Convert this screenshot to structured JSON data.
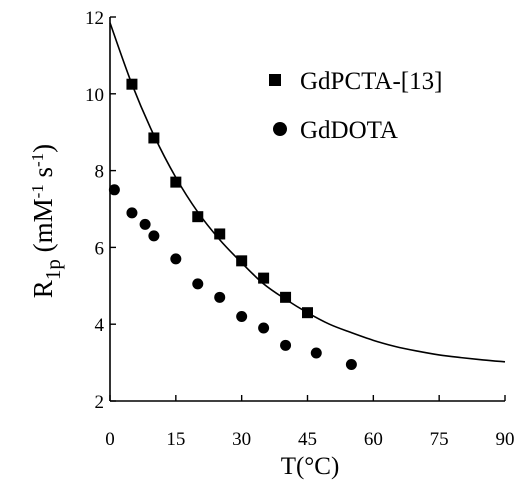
{
  "chart_data": {
    "type": "scatter",
    "xlabel": "T(°C)",
    "ylabel": {
      "main": "R",
      "subscript": "1p",
      "units_open": " (mM",
      "units_exp1": "-1",
      "units_mid": " s",
      "units_exp2": "-1",
      "units_close": ")"
    },
    "xlim": [
      0,
      90
    ],
    "ylim": [
      2,
      12
    ],
    "xticks": [
      "0",
      "15",
      "30",
      "45",
      "60",
      "75",
      "90"
    ],
    "yticks": [
      "2",
      "4",
      "6",
      "8",
      "10",
      "12"
    ],
    "xtick_values": [
      0,
      15,
      30,
      45,
      60,
      75,
      90
    ],
    "ytick_values": [
      2,
      4,
      6,
      8,
      10,
      12
    ],
    "legend_position": "top-right",
    "series": [
      {
        "name": "GdPCTA-[13]",
        "marker": "square",
        "x": [
          5,
          10,
          15,
          20,
          25,
          30,
          35,
          40,
          45
        ],
        "y": [
          10.25,
          8.85,
          7.7,
          6.8,
          6.35,
          5.65,
          5.2,
          4.7,
          4.3
        ]
      },
      {
        "name": "GdDOTA",
        "marker": "circle",
        "x": [
          1,
          5,
          8,
          10,
          15,
          20,
          25,
          30,
          35,
          40,
          47,
          55
        ],
        "y": [
          7.5,
          6.9,
          6.6,
          6.3,
          5.7,
          5.05,
          4.7,
          4.2,
          3.9,
          3.45,
          3.25,
          2.95
        ]
      }
    ],
    "fit_curve": {
      "x": [
        0,
        5,
        10,
        15,
        20,
        25,
        30,
        35,
        40,
        45,
        50,
        55,
        60,
        65,
        70,
        75,
        80,
        85,
        90
      ],
      "y": [
        11.85,
        10.25,
        8.92,
        7.82,
        6.92,
        6.2,
        5.6,
        5.05,
        4.65,
        4.3,
        4.0,
        3.78,
        3.58,
        3.42,
        3.3,
        3.2,
        3.13,
        3.07,
        3.02
      ]
    }
  }
}
